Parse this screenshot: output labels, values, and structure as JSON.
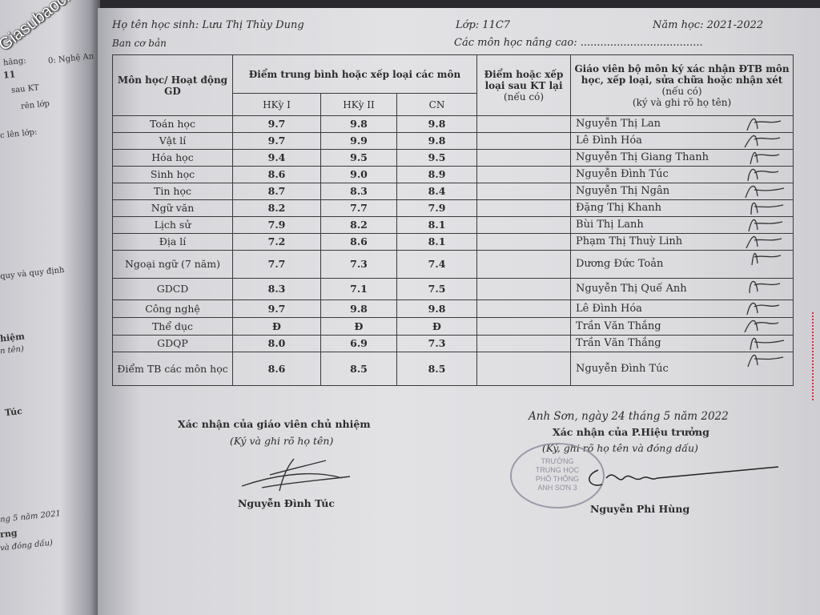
{
  "watermark": "Giasubaochau.net",
  "left_page": {
    "fragments": [
      "0: Nghệ An",
      "hăng:",
      "11",
      "sau KT",
      "rên lớp",
      "c lên lớp:",
      "quy và quy định",
      "hiệm",
      "n tên)",
      "Túc",
      "ng 5 năm 2021",
      "rng",
      "và đóng dấu)"
    ]
  },
  "header": {
    "student_label": "Họ tên học sinh: Lưu Thị Thùy Dung",
    "class_label": "Lớp: 11C7",
    "year_label": "Năm học: 2021-2022",
    "track": "Ban cơ bản",
    "advanced_label": "Các môn học nâng cao: ....................................."
  },
  "table": {
    "col_subject": "Môn học/ Hoạt động GD",
    "col_avg": "Điểm trung bình hoặc xếp loại các môn",
    "col_hk1": "HKỳ I",
    "col_hk2": "HKỳ II",
    "col_cn": "CN",
    "col_retest": "Điểm hoặc xếp loại sau KT lại",
    "col_retest_note": "(nếu có)",
    "col_teacher": "Giáo viên bộ môn ký xác nhận ĐTB môn học, xếp loại, sửa chữa hoặc",
    "col_teacher_2": "nhận xét",
    "col_teacher_note": "(nếu có)",
    "col_teacher_3": "(ký và ghi rõ họ tên)",
    "rows": [
      {
        "subject": "Toán học",
        "hk1": "9.7",
        "hk2": "9.8",
        "cn": "9.8",
        "retest": "",
        "teacher": "Nguyễn Thị Lan"
      },
      {
        "subject": "Vật lí",
        "hk1": "9.7",
        "hk2": "9.9",
        "cn": "9.8",
        "retest": "",
        "teacher": "Lê Đình Hóa"
      },
      {
        "subject": "Hóa học",
        "hk1": "9.4",
        "hk2": "9.5",
        "cn": "9.5",
        "retest": "",
        "teacher": "Nguyễn Thị Giang Thanh"
      },
      {
        "subject": "Sinh học",
        "hk1": "8.6",
        "hk2": "9.0",
        "cn": "8.9",
        "retest": "",
        "teacher": "Nguyễn Đình Túc"
      },
      {
        "subject": "Tin học",
        "hk1": "8.7",
        "hk2": "8.3",
        "cn": "8.4",
        "retest": "",
        "teacher": "Nguyễn Thị Ngân"
      },
      {
        "subject": "Ngữ văn",
        "hk1": "8.2",
        "hk2": "7.7",
        "cn": "7.9",
        "retest": "",
        "teacher": "Đặng Thị Khanh"
      },
      {
        "subject": "Lịch sử",
        "hk1": "7.9",
        "hk2": "8.2",
        "cn": "8.1",
        "retest": "",
        "teacher": "Bùi Thị Lanh"
      },
      {
        "subject": "Địa lí",
        "hk1": "7.2",
        "hk2": "8.6",
        "cn": "8.1",
        "retest": "",
        "teacher": "Phạm Thị Thuỳ Linh"
      },
      {
        "subject": "Ngoại ngữ (7 năm)",
        "hk1": "7.7",
        "hk2": "7.3",
        "cn": "7.4",
        "retest": "",
        "teacher": "Dương Đức Toản"
      },
      {
        "subject": "GDCD",
        "hk1": "8.3",
        "hk2": "7.1",
        "cn": "7.5",
        "retest": "",
        "teacher": "Nguyễn Thị Quế Anh"
      },
      {
        "subject": "Công nghệ",
        "hk1": "9.7",
        "hk2": "9.8",
        "cn": "9.8",
        "retest": "",
        "teacher": "Lê Đình Hóa"
      },
      {
        "subject": "Thể dục",
        "hk1": "Đ",
        "hk2": "Đ",
        "cn": "Đ",
        "retest": "",
        "teacher": "Trần Văn Thắng"
      },
      {
        "subject": "GDQP",
        "hk1": "8.0",
        "hk2": "6.9",
        "cn": "7.3",
        "retest": "",
        "teacher": "Trần Văn Thắng"
      },
      {
        "subject": "Điểm TB các môn học",
        "hk1": "8.6",
        "hk2": "8.5",
        "cn": "8.5",
        "retest": "",
        "teacher": "Nguyễn Đình Túc"
      }
    ]
  },
  "footer": {
    "homeroom_title": "Xác nhận của giáo viên chủ nhiệm",
    "homeroom_note": "(Ký và ghi rõ họ tên)",
    "homeroom_name": "Nguyễn Đình Túc",
    "place_date": "Anh Sơn, ngày 24 tháng 5 năm 2022",
    "principal_title": "Xác nhận của P.Hiệu trưởng",
    "principal_note": "(Ký, ghi rõ họ tên và đóng dấu)",
    "principal_name": "Nguyễn Phi Hùng",
    "stamp_lines": [
      "TRƯỜNG",
      "TRUNG HỌC",
      "PHỔ THÔNG",
      "ANH SƠN 3"
    ]
  }
}
